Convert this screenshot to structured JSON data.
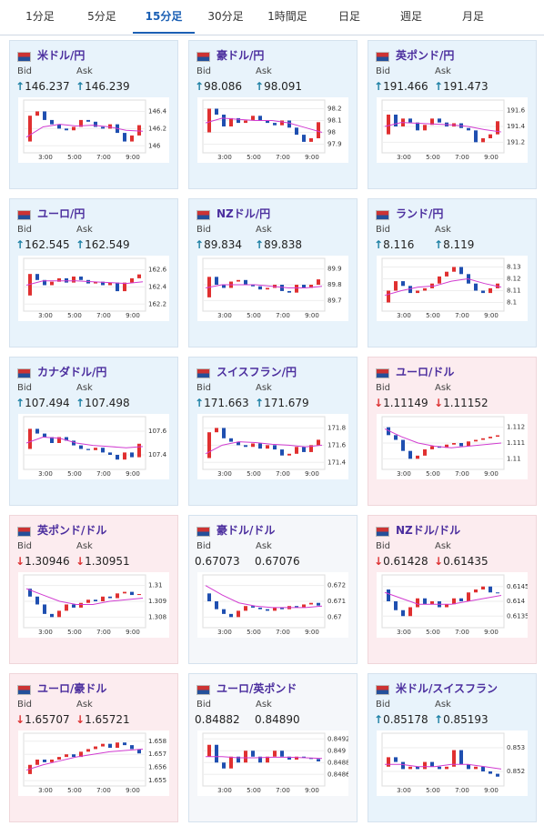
{
  "tabs": [
    "1分足",
    "5分足",
    "15分足",
    "30分足",
    "1時間足",
    "日足",
    "週足",
    "月足"
  ],
  "active_tab": 2,
  "labels": {
    "bid": "Bid",
    "ask": "Ask"
  },
  "xticks": [
    "3:00",
    "5:00",
    "7:00",
    "9:00"
  ],
  "panels": [
    {
      "title": "米ドル/円",
      "trend": "up",
      "dir": "↑",
      "bid": "146.237",
      "ask": "146.239",
      "ylim": [
        145.95,
        146.5
      ],
      "yticks": [
        146.4,
        146.2,
        146
      ],
      "closes": [
        146.05,
        146.35,
        146.4,
        146.3,
        146.25,
        146.2,
        146.18,
        146.22,
        146.3,
        146.28,
        146.22,
        146.2,
        146.25,
        146.15,
        146.05,
        146.12,
        146.24
      ],
      "ma": [
        146.1,
        146.22,
        146.25,
        146.23,
        146.24,
        146.22,
        146.18,
        146.17
      ]
    },
    {
      "title": "豪ドル/円",
      "trend": "up",
      "dir": "↑",
      "bid": "98.086",
      "ask": "98.091",
      "ylim": [
        97.85,
        98.25
      ],
      "yticks": [
        98.2,
        98.1,
        98,
        97.9
      ],
      "closes": [
        98.0,
        98.2,
        98.15,
        98.05,
        98.12,
        98.08,
        98.1,
        98.14,
        98.1,
        98.08,
        98.06,
        98.1,
        98.04,
        97.98,
        97.92,
        97.95,
        98.086
      ],
      "ma": [
        98.08,
        98.12,
        98.11,
        98.1,
        98.1,
        98.08,
        98.04,
        98.0
      ]
    },
    {
      "title": "英ポンド/円",
      "trend": "up",
      "dir": "↑",
      "bid": "191.466",
      "ask": "191.473",
      "ylim": [
        191.1,
        191.7
      ],
      "yticks": [
        191.6,
        191.4,
        191.2
      ],
      "closes": [
        191.3,
        191.55,
        191.4,
        191.5,
        191.45,
        191.35,
        191.42,
        191.5,
        191.45,
        191.4,
        191.44,
        191.38,
        191.35,
        191.2,
        191.25,
        191.3,
        191.466
      ],
      "ma": [
        191.4,
        191.45,
        191.44,
        191.43,
        191.42,
        191.4,
        191.36,
        191.33
      ]
    },
    {
      "title": "ユーロ/円",
      "trend": "up",
      "dir": "↑",
      "bid": "162.545",
      "ask": "162.549",
      "ylim": [
        162.15,
        162.7
      ],
      "yticks": [
        162.6,
        162.4,
        162.2
      ],
      "closes": [
        162.3,
        162.55,
        162.48,
        162.42,
        162.46,
        162.5,
        162.45,
        162.52,
        162.48,
        162.44,
        162.46,
        162.42,
        162.45,
        162.35,
        162.45,
        162.5,
        162.545
      ],
      "ma": [
        162.42,
        162.47,
        162.47,
        162.47,
        162.46,
        162.45,
        162.44,
        162.46
      ]
    },
    {
      "title": "NZドル/円",
      "trend": "up",
      "dir": "↑",
      "bid": "89.834",
      "ask": "89.838",
      "ylim": [
        89.65,
        89.95
      ],
      "yticks": [
        89.9,
        89.8,
        89.7
      ],
      "closes": [
        89.72,
        89.85,
        89.8,
        89.78,
        89.82,
        89.83,
        89.8,
        89.79,
        89.77,
        89.78,
        89.8,
        89.76,
        89.75,
        89.8,
        89.78,
        89.8,
        89.834
      ],
      "ma": [
        89.78,
        89.8,
        89.8,
        89.8,
        89.79,
        89.78,
        89.78,
        89.79
      ]
    },
    {
      "title": "ランド/円",
      "trend": "up",
      "dir": "↑",
      "bid": "8.116",
      "ask": "8.119",
      "ylim": [
        8.095,
        8.135
      ],
      "yticks": [
        8.13,
        8.12,
        8.11,
        8.1
      ],
      "closes": [
        8.1,
        8.11,
        8.118,
        8.114,
        8.108,
        8.11,
        8.112,
        8.116,
        8.122,
        8.126,
        8.13,
        8.124,
        8.116,
        8.11,
        8.108,
        8.112,
        8.116
      ],
      "ma": [
        8.106,
        8.11,
        8.113,
        8.114,
        8.118,
        8.12,
        8.116,
        8.113
      ]
    },
    {
      "title": "カナダドル/円",
      "trend": "up",
      "dir": "↑",
      "bid": "107.494",
      "ask": "107.498",
      "ylim": [
        107.3,
        107.7
      ],
      "yticks": [
        107.6,
        107.4
      ],
      "closes": [
        107.45,
        107.62,
        107.58,
        107.55,
        107.5,
        107.55,
        107.52,
        107.48,
        107.45,
        107.44,
        107.46,
        107.42,
        107.4,
        107.36,
        107.42,
        107.38,
        107.494
      ],
      "ma": [
        107.5,
        107.55,
        107.54,
        107.5,
        107.48,
        107.47,
        107.46,
        107.47
      ]
    },
    {
      "title": "スイスフラン/円",
      "trend": "up",
      "dir": "↑",
      "bid": "171.663",
      "ask": "171.679",
      "ylim": [
        171.35,
        171.9
      ],
      "yticks": [
        171.8,
        171.6,
        171.4
      ],
      "closes": [
        171.45,
        171.75,
        171.8,
        171.68,
        171.64,
        171.6,
        171.58,
        171.62,
        171.56,
        171.6,
        171.55,
        171.48,
        171.5,
        171.58,
        171.52,
        171.6,
        171.663
      ],
      "ma": [
        171.5,
        171.6,
        171.64,
        171.63,
        171.61,
        171.6,
        171.58,
        171.6
      ]
    },
    {
      "title": "ユーロ/ドル",
      "trend": "down",
      "dir": "↓",
      "bid": "1.11149",
      "ask": "1.11152",
      "ylim": [
        1.1095,
        1.1125
      ],
      "yticks": [
        1.112,
        1.111,
        1.11
      ],
      "closes": [
        1.112,
        1.1115,
        1.1112,
        1.1105,
        1.11,
        1.1102,
        1.1106,
        1.1108,
        1.1107,
        1.1109,
        1.111,
        1.1108,
        1.1111,
        1.1112,
        1.1113,
        1.1114,
        1.11149
      ],
      "ma": [
        1.1119,
        1.1114,
        1.111,
        1.1108,
        1.1107,
        1.1108,
        1.1109,
        1.111
      ]
    },
    {
      "title": "英ポンド/ドル",
      "trend": "down",
      "dir": "↓",
      "bid": "1.30946",
      "ask": "1.30951",
      "ylim": [
        1.3075,
        1.3105
      ],
      "yticks": [
        1.31,
        1.309,
        1.308
      ],
      "closes": [
        1.3098,
        1.3093,
        1.3088,
        1.3082,
        1.308,
        1.3084,
        1.3088,
        1.3086,
        1.3089,
        1.3091,
        1.309,
        1.3093,
        1.3092,
        1.3095,
        1.3096,
        1.3094,
        1.30946
      ],
      "ma": [
        1.3098,
        1.3094,
        1.309,
        1.3088,
        1.3088,
        1.309,
        1.3091,
        1.3092
      ]
    },
    {
      "title": "豪ドル/ドル",
      "trend": "flat",
      "bid": "0.67073",
      "ask": "0.67076",
      "ylim": [
        0.6695,
        0.6725
      ],
      "yticks": [
        0.672,
        0.671,
        0.67
      ],
      "closes": [
        0.6715,
        0.671,
        0.6705,
        0.6702,
        0.67,
        0.6704,
        0.6707,
        0.6706,
        0.6705,
        0.6704,
        0.6706,
        0.6705,
        0.6707,
        0.6706,
        0.6708,
        0.6709,
        0.67073
      ],
      "ma": [
        0.672,
        0.6714,
        0.6709,
        0.6707,
        0.6706,
        0.6706,
        0.6706,
        0.6707
      ]
    },
    {
      "title": "NZドル/ドル",
      "trend": "down",
      "dir": "↓",
      "bid": "0.61428",
      "ask": "0.61435",
      "ylim": [
        0.6132,
        0.6148
      ],
      "yticks": [
        0.6145,
        0.614,
        0.6135
      ],
      "closes": [
        0.6144,
        0.614,
        0.6137,
        0.6135,
        0.6138,
        0.6141,
        0.6139,
        0.614,
        0.6138,
        0.6139,
        0.6141,
        0.614,
        0.6143,
        0.6144,
        0.6145,
        0.6143,
        0.61428
      ],
      "ma": [
        0.6143,
        0.6141,
        0.6139,
        0.6139,
        0.6139,
        0.614,
        0.6141,
        0.6142
      ]
    },
    {
      "title": "ユーロ/豪ドル",
      "trend": "down",
      "dir": "↓",
      "bid": "1.65707",
      "ask": "1.65721",
      "ylim": [
        1.6548,
        1.6584
      ],
      "yticks": [
        1.658,
        1.657,
        1.656,
        1.655
      ],
      "closes": [
        1.6555,
        1.6562,
        1.6566,
        1.6564,
        1.6566,
        1.6568,
        1.657,
        1.6568,
        1.6572,
        1.6574,
        1.6576,
        1.6578,
        1.6575,
        1.6579,
        1.6577,
        1.6574,
        1.65707
      ],
      "ma": [
        1.6558,
        1.6562,
        1.6565,
        1.6568,
        1.657,
        1.6572,
        1.6573,
        1.6574
      ]
    },
    {
      "title": "ユーロ/英ポンド",
      "trend": "flat",
      "bid": "0.84882",
      "ask": "0.84890",
      "ylim": [
        0.84845,
        0.84925
      ],
      "yticks": [
        0.8492,
        0.849,
        0.8488,
        0.8486
      ],
      "closes": [
        0.8489,
        0.8491,
        0.8488,
        0.8487,
        0.8489,
        0.8488,
        0.849,
        0.8489,
        0.8488,
        0.8489,
        0.849,
        0.8489,
        0.84885,
        0.8489,
        0.84888,
        0.84886,
        0.84882
      ],
      "ma": [
        0.8489,
        0.8489,
        0.84888,
        0.84888,
        0.84889,
        0.84889,
        0.84888,
        0.84887
      ]
    },
    {
      "title": "米ドル/スイスフラン",
      "trend": "up",
      "dir": "↑",
      "bid": "0.85178",
      "ask": "0.85193",
      "ylim": [
        0.8515,
        0.8535
      ],
      "yticks": [
        0.853,
        0.852
      ],
      "closes": [
        0.8522,
        0.8526,
        0.8524,
        0.8521,
        0.8522,
        0.8521,
        0.8524,
        0.8522,
        0.8521,
        0.8522,
        0.8529,
        0.8523,
        0.8521,
        0.8522,
        0.852,
        0.8519,
        0.85178
      ],
      "ma": [
        0.8523,
        0.8523,
        0.8522,
        0.8522,
        0.8523,
        0.8523,
        0.8522,
        0.8521
      ]
    }
  ]
}
